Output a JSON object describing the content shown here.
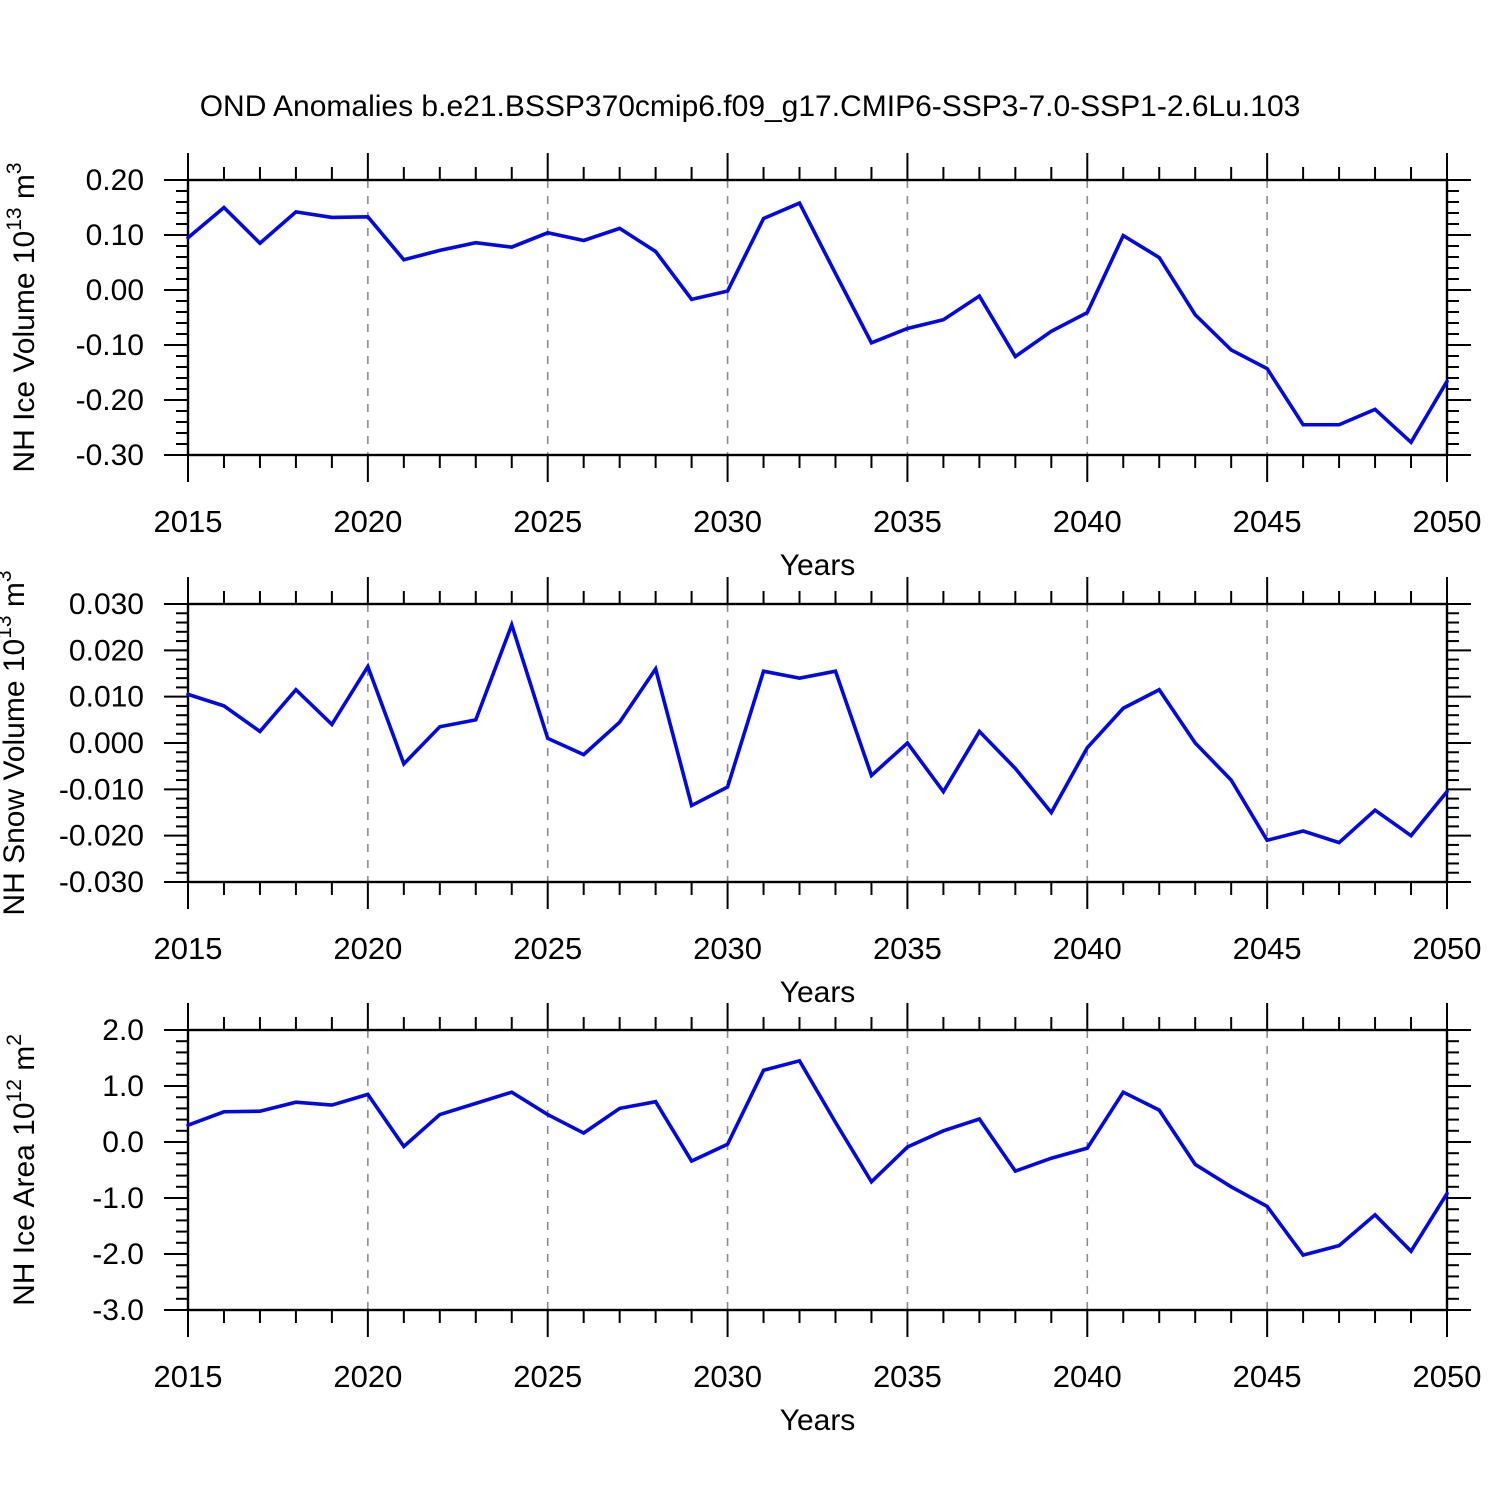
{
  "title": "OND Anomalies b.e21.BSSP370cmip6.f09_g17.CMIP6-SSP3-7.0-SSP1-2.6Lu.103",
  "colors": {
    "line": "#0008e8",
    "frame": "#000000",
    "grid": "#8c8c8c",
    "text": "#000000"
  },
  "x_axis": {
    "label": "Years",
    "start": 2015,
    "end": 2050,
    "major_step": 5,
    "minor_step": 1,
    "grid_years": [
      2020,
      2025,
      2030,
      2035,
      2040,
      2045
    ],
    "tick_labels": [
      "2015",
      "2020",
      "2025",
      "2030",
      "2035",
      "2040",
      "2045",
      "2050"
    ]
  },
  "chart_data": [
    {
      "type": "line",
      "name": "ice-volume",
      "ylabel": {
        "text": "NH Ice Volume 10",
        "sup": "13",
        "text2": " m",
        "sup2": "3"
      },
      "ylim": [
        -0.3,
        0.2
      ],
      "ymajor": 0.1,
      "yminor": 0.02,
      "ydecimals": 2,
      "grid": "vertical-dashed",
      "legend": "none",
      "x": [
        2015,
        2016,
        2017,
        2018,
        2019,
        2020,
        2021,
        2022,
        2023,
        2024,
        2025,
        2026,
        2027,
        2028,
        2029,
        2030,
        2031,
        2032,
        2033,
        2034,
        2035,
        2036,
        2037,
        2038,
        2039,
        2040,
        2041,
        2042,
        2043,
        2044,
        2045,
        2046,
        2047,
        2048,
        2049,
        2050
      ],
      "values": [
        0.095,
        0.15,
        0.085,
        0.142,
        0.132,
        0.133,
        0.055,
        0.072,
        0.086,
        0.078,
        0.104,
        0.09,
        0.112,
        0.07,
        -0.017,
        -0.002,
        0.13,
        0.158,
        0.03,
        -0.096,
        -0.07,
        -0.054,
        -0.011,
        -0.121,
        -0.075,
        -0.041,
        0.099,
        0.059,
        -0.045,
        -0.109,
        -0.143,
        -0.245,
        -0.245,
        -0.217,
        -0.277,
        -0.166
      ]
    },
    {
      "type": "line",
      "name": "snow-volume",
      "ylabel": {
        "text": "NH Snow Volume 10",
        "sup": "13",
        "text2": " m",
        "sup2": "3"
      },
      "ylim": [
        -0.03,
        0.03
      ],
      "ymajor": 0.01,
      "yminor": 0.002,
      "ydecimals": 3,
      "grid": "vertical-dashed",
      "legend": "none",
      "x": [
        2015,
        2016,
        2017,
        2018,
        2019,
        2020,
        2021,
        2022,
        2023,
        2024,
        2025,
        2026,
        2027,
        2028,
        2029,
        2030,
        2031,
        2032,
        2033,
        2034,
        2035,
        2036,
        2037,
        2038,
        2039,
        2040,
        2041,
        2042,
        2043,
        2044,
        2045,
        2046,
        2047,
        2048,
        2049,
        2050
      ],
      "values": [
        0.0105,
        0.008,
        0.0025,
        0.0115,
        0.004,
        0.0165,
        -0.0045,
        0.0035,
        0.005,
        0.0255,
        0.001,
        -0.0025,
        0.0045,
        0.016,
        -0.0135,
        -0.0095,
        0.0155,
        0.014,
        0.0155,
        -0.007,
        0.0,
        -0.0105,
        0.0025,
        -0.0055,
        -0.015,
        -0.001,
        0.0075,
        0.0115,
        0.0,
        -0.008,
        -0.021,
        -0.019,
        -0.0215,
        -0.0145,
        -0.02,
        -0.0105
      ]
    },
    {
      "type": "line",
      "name": "ice-area",
      "ylabel": {
        "text": "NH Ice Area 10",
        "sup": "12",
        "text2": " m",
        "sup2": "2"
      },
      "ylim": [
        -3.0,
        2.0
      ],
      "ymajor": 1.0,
      "yminor": 0.2,
      "ydecimals": 1,
      "grid": "vertical-dashed",
      "legend": "none",
      "x": [
        2015,
        2016,
        2017,
        2018,
        2019,
        2020,
        2021,
        2022,
        2023,
        2024,
        2025,
        2026,
        2027,
        2028,
        2029,
        2030,
        2031,
        2032,
        2033,
        2034,
        2035,
        2036,
        2037,
        2038,
        2039,
        2040,
        2041,
        2042,
        2043,
        2044,
        2045,
        2046,
        2047,
        2048,
        2049,
        2050
      ],
      "values": [
        0.3,
        0.54,
        0.55,
        0.71,
        0.66,
        0.85,
        -0.08,
        0.49,
        0.69,
        0.89,
        0.49,
        0.16,
        0.6,
        0.72,
        -0.34,
        -0.04,
        1.28,
        1.45,
        0.35,
        -0.71,
        -0.09,
        0.2,
        0.41,
        -0.52,
        -0.29,
        -0.11,
        0.89,
        0.57,
        -0.4,
        -0.8,
        -1.15,
        -2.02,
        -1.85,
        -1.3,
        -1.95,
        -0.92
      ]
    }
  ]
}
